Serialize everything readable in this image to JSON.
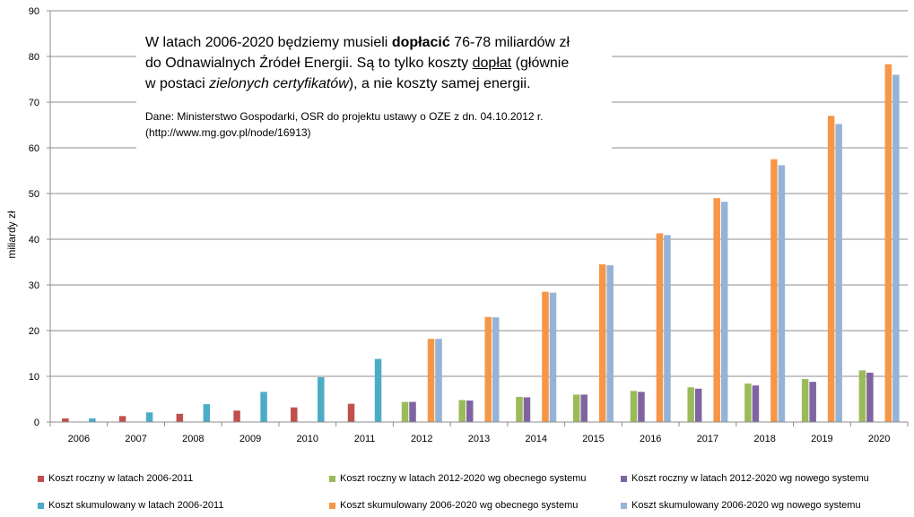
{
  "chart_data": {
    "type": "bar",
    "ylabel": "miliardy zł",
    "ylim": [
      0,
      90
    ],
    "yticks": [
      0,
      10,
      20,
      30,
      40,
      50,
      60,
      70,
      80,
      90
    ],
    "categories": [
      "2006",
      "2007",
      "2008",
      "2009",
      "2010",
      "2011",
      "2012",
      "2013",
      "2014",
      "2015",
      "2016",
      "2017",
      "2018",
      "2019",
      "2020"
    ],
    "grid": true,
    "legend_position": "bottom",
    "series": [
      {
        "name": "Koszt roczny w latach 2006-2011",
        "color": "#c0504d",
        "values": [
          0.8,
          1.3,
          1.8,
          2.5,
          3.2,
          4.0,
          null,
          null,
          null,
          null,
          null,
          null,
          null,
          null,
          null
        ]
      },
      {
        "name": "Koszt skumulowany w latach 2006-2011",
        "color": "#4bacc6",
        "values": [
          0.8,
          2.1,
          3.9,
          6.6,
          9.8,
          13.8,
          null,
          null,
          null,
          null,
          null,
          null,
          null,
          null,
          null
        ]
      },
      {
        "name": "Koszt roczny w latach 2012-2020 wg obecnego systemu",
        "color": "#9bbb59",
        "values": [
          null,
          null,
          null,
          null,
          null,
          null,
          4.4,
          4.8,
          5.5,
          6.0,
          6.8,
          7.6,
          8.4,
          9.4,
          11.3
        ]
      },
      {
        "name": "Koszt roczny w latach 2012-2020 wg nowego systemu",
        "color": "#8064a2",
        "values": [
          null,
          null,
          null,
          null,
          null,
          null,
          4.4,
          4.7,
          5.4,
          6.0,
          6.6,
          7.3,
          8.0,
          8.8,
          10.8
        ]
      },
      {
        "name": "Koszt skumulowany 2006-2020 wg obecnego systemu",
        "color": "#f79646",
        "values": [
          null,
          null,
          null,
          null,
          null,
          null,
          18.2,
          23.0,
          28.5,
          34.5,
          41.3,
          49.0,
          57.5,
          67.0,
          78.3
        ]
      },
      {
        "name": "Koszt skumulowany 2006-2020 wg nowego systemu",
        "color": "#95b3d7",
        "values": [
          null,
          null,
          null,
          null,
          null,
          null,
          18.2,
          22.9,
          28.3,
          34.3,
          40.9,
          48.2,
          56.2,
          65.2,
          76.0
        ]
      }
    ],
    "annotation": {
      "line1_a": "W latach 2006-2020 będziemy musieli ",
      "line1_b": "dopłacić",
      "line1_c": " 76-78 miliardów zł",
      "line2_a": "do Odnawialnych Źródeł Energii. Są to tylko koszty ",
      "line2_b": "dopłat",
      "line2_c": " (głównie",
      "line3_a": "w postaci ",
      "line3_b": "zielonych certyfikatów",
      "line3_c": "), a nie koszty samej energii.",
      "source_line1": "Dane: Ministerstwo Gospodarki, OSR do projektu ustawy o OZE z dn. 04.10.2012  r.",
      "source_line2": "(http://www.mg.gov.pl/node/16913)"
    }
  }
}
